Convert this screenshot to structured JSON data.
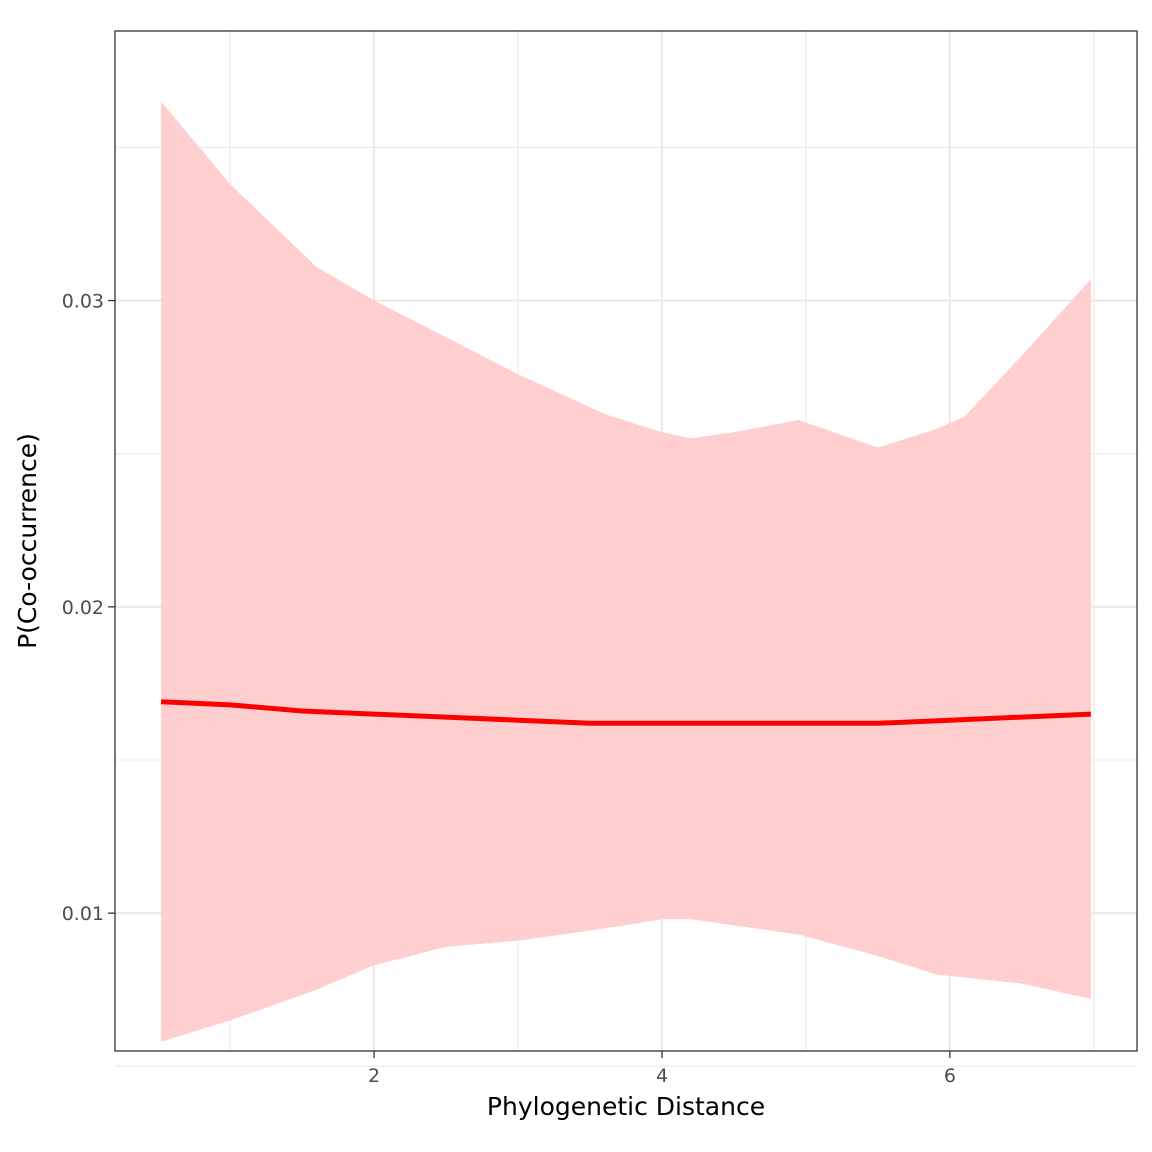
{
  "chart_data": {
    "type": "line",
    "title": "",
    "xlabel": "Phylogenetic Distance",
    "ylabel": "P(Co-occurrence)",
    "xlim": [
      0.2,
      7.3
    ],
    "ylim": [
      0.0055,
      0.0388
    ],
    "x_ticks": [
      2,
      4,
      6
    ],
    "x_tick_labels": [
      "2",
      "4",
      "6"
    ],
    "y_ticks": [
      0.01,
      0.02,
      0.03
    ],
    "y_tick_labels": [
      "0.01",
      "0.02",
      "0.03"
    ],
    "x_minor_ticks": [
      1,
      3,
      5,
      7
    ],
    "y_minor_ticks": [
      0.005,
      0.015,
      0.025,
      0.035
    ],
    "grid": true,
    "legend": "none",
    "colors": {
      "line": "#ff0000",
      "ribbon": "#ffcccc",
      "grid": "#ebebeb",
      "panel_border": "#333333"
    },
    "series": [
      {
        "x": [
          0.52,
          1.0,
          1.5,
          2.0,
          2.5,
          3.0,
          3.5,
          4.0,
          4.5,
          5.0,
          5.5,
          6.0,
          6.5,
          6.98
        ],
        "y": [
          0.0169,
          0.0168,
          0.0166,
          0.0165,
          0.0164,
          0.0163,
          0.0162,
          0.0162,
          0.0162,
          0.0162,
          0.0162,
          0.0163,
          0.0164,
          0.0165
        ]
      }
    ],
    "ribbon": {
      "x": [
        0.52,
        1.0,
        1.6,
        2.0,
        2.5,
        3.0,
        3.6,
        4.0,
        4.2,
        4.5,
        4.95,
        5.5,
        5.9,
        6.1,
        6.5,
        6.98
      ],
      "upper": [
        0.0365,
        0.0338,
        0.0311,
        0.03,
        0.0288,
        0.0276,
        0.0263,
        0.0257,
        0.0255,
        0.0257,
        0.0261,
        0.0252,
        0.0258,
        0.0262,
        0.0282,
        0.0307
      ],
      "lower": [
        0.0058,
        0.0065,
        0.0075,
        0.0083,
        0.0089,
        0.0091,
        0.0095,
        0.0098,
        0.0098,
        0.0096,
        0.0093,
        0.0086,
        0.008,
        0.0079,
        0.0077,
        0.0072
      ]
    }
  }
}
